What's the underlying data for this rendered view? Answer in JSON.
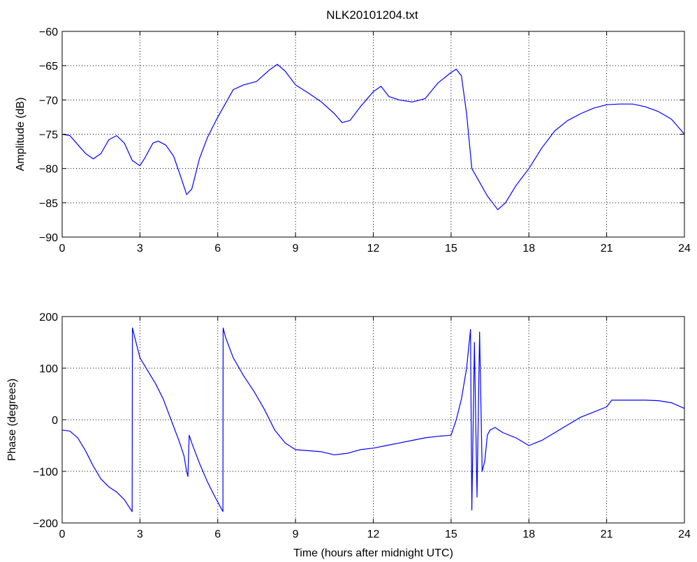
{
  "chart_data": [
    {
      "type": "line",
      "title": "NLK20101204.txt",
      "xlabel": "",
      "ylabel": "Amplitude (dB)",
      "xlim": [
        0,
        24
      ],
      "ylim": [
        -90,
        -60
      ],
      "grid": true,
      "line_color": "#0000ff",
      "x_ticks": [
        0,
        3,
        6,
        9,
        12,
        15,
        18,
        21,
        24
      ],
      "x_tick_labels": [
        "0",
        "3",
        "6",
        "9",
        "12",
        "15",
        "18",
        "21",
        "24"
      ],
      "y_ticks": [
        -90,
        -85,
        -80,
        -75,
        -70,
        -65,
        -60
      ],
      "y_tick_labels": [
        "−90",
        "−85",
        "−80",
        "−75",
        "−70",
        "−65",
        "−60"
      ],
      "series": [
        {
          "x": [
            0,
            0.3,
            0.6,
            0.9,
            1.2,
            1.5,
            1.8,
            2.1,
            2.4,
            2.7,
            3.0,
            3.2,
            3.5,
            3.7,
            4.0,
            4.3,
            4.6,
            4.8,
            5.0,
            5.3,
            5.6,
            6.0,
            6.3,
            6.6,
            7.0,
            7.5,
            8.0,
            8.3,
            8.6,
            9.0,
            9.5,
            10.0,
            10.5,
            10.8,
            11.1,
            11.5,
            12.0,
            12.3,
            12.6,
            13.0,
            13.5,
            14.0,
            14.5,
            15.0,
            15.2,
            15.4,
            15.6,
            15.8,
            16.1,
            16.4,
            16.8,
            17.1,
            17.5,
            18.0,
            18.5,
            19.0,
            19.5,
            20.0,
            20.5,
            21.0,
            21.5,
            22.0,
            22.5,
            23.0,
            23.5,
            24.0
          ],
          "y": [
            -75,
            -75.2,
            -76.5,
            -77.8,
            -78.6,
            -77.8,
            -75.8,
            -75.2,
            -76.3,
            -78.8,
            -79.6,
            -78.4,
            -76.3,
            -76.0,
            -76.6,
            -78.2,
            -81.5,
            -83.8,
            -83.0,
            -78.5,
            -75.5,
            -72.5,
            -70.5,
            -68.5,
            -67.8,
            -67.3,
            -65.6,
            -64.8,
            -65.8,
            -67.8,
            -69.0,
            -70.3,
            -72.0,
            -73.3,
            -73.0,
            -71.0,
            -68.8,
            -68.0,
            -69.5,
            -70.0,
            -70.3,
            -69.8,
            -67.5,
            -66.0,
            -65.5,
            -66.5,
            -72.0,
            -80.0,
            -82.0,
            -84.0,
            -86.0,
            -85.0,
            -82.5,
            -80.0,
            -77.0,
            -74.5,
            -73.0,
            -72.0,
            -71.2,
            -70.7,
            -70.6,
            -70.6,
            -71.0,
            -71.7,
            -72.8,
            -75.0
          ]
        }
      ]
    },
    {
      "type": "line",
      "title": "",
      "xlabel": "Time (hours after midnight UTC)",
      "ylabel": "Phase (degrees)",
      "xlim": [
        0,
        24
      ],
      "ylim": [
        -200,
        200
      ],
      "grid": true,
      "line_color": "#0000ff",
      "x_ticks": [
        0,
        3,
        6,
        9,
        12,
        15,
        18,
        21,
        24
      ],
      "x_tick_labels": [
        "0",
        "3",
        "6",
        "9",
        "12",
        "15",
        "18",
        "21",
        "24"
      ],
      "y_ticks": [
        -200,
        -100,
        0,
        100,
        200
      ],
      "y_tick_labels": [
        "−200",
        "−100",
        "0",
        "100",
        "200"
      ],
      "series": [
        {
          "x": [
            0,
            0.3,
            0.6,
            0.9,
            1.2,
            1.5,
            1.8,
            2.1,
            2.4,
            2.7,
            2.71,
            2.8,
            3.0,
            3.3,
            3.6,
            3.9,
            4.2,
            4.5,
            4.7,
            4.8,
            4.85,
            4.9,
            5.0,
            5.3,
            5.6,
            5.9,
            6.2,
            6.21,
            6.3,
            6.6,
            7.0,
            7.4,
            7.8,
            8.2,
            8.6,
            9.0,
            9.5,
            10.0,
            10.5,
            11.0,
            11.5,
            12.0,
            12.5,
            13.0,
            13.5,
            14.0,
            14.5,
            15.0,
            15.2,
            15.4,
            15.6,
            15.75,
            15.8,
            15.9,
            16.0,
            16.1,
            16.2,
            16.3,
            16.4,
            16.5,
            16.7,
            17.0,
            17.5,
            18.0,
            18.5,
            19.0,
            19.5,
            20.0,
            20.5,
            21.0,
            21.2,
            21.5,
            22.0,
            22.5,
            23.0,
            23.5,
            24.0
          ],
          "y": [
            -20,
            -22,
            -35,
            -60,
            -90,
            -115,
            -130,
            -140,
            -155,
            -178,
            178,
            160,
            120,
            95,
            70,
            40,
            0,
            -40,
            -70,
            -100,
            -110,
            -30,
            -45,
            -85,
            -120,
            -150,
            -178,
            178,
            160,
            120,
            85,
            55,
            20,
            -20,
            -45,
            -58,
            -60,
            -62,
            -68,
            -65,
            -58,
            -55,
            -50,
            -45,
            -40,
            -35,
            -32,
            -30,
            0,
            40,
            100,
            175,
            -175,
            150,
            -150,
            170,
            -100,
            -80,
            -30,
            -20,
            -15,
            -25,
            -35,
            -50,
            -40,
            -25,
            -10,
            5,
            15,
            25,
            38,
            38,
            38,
            38,
            37,
            33,
            22
          ]
        }
      ]
    }
  ]
}
